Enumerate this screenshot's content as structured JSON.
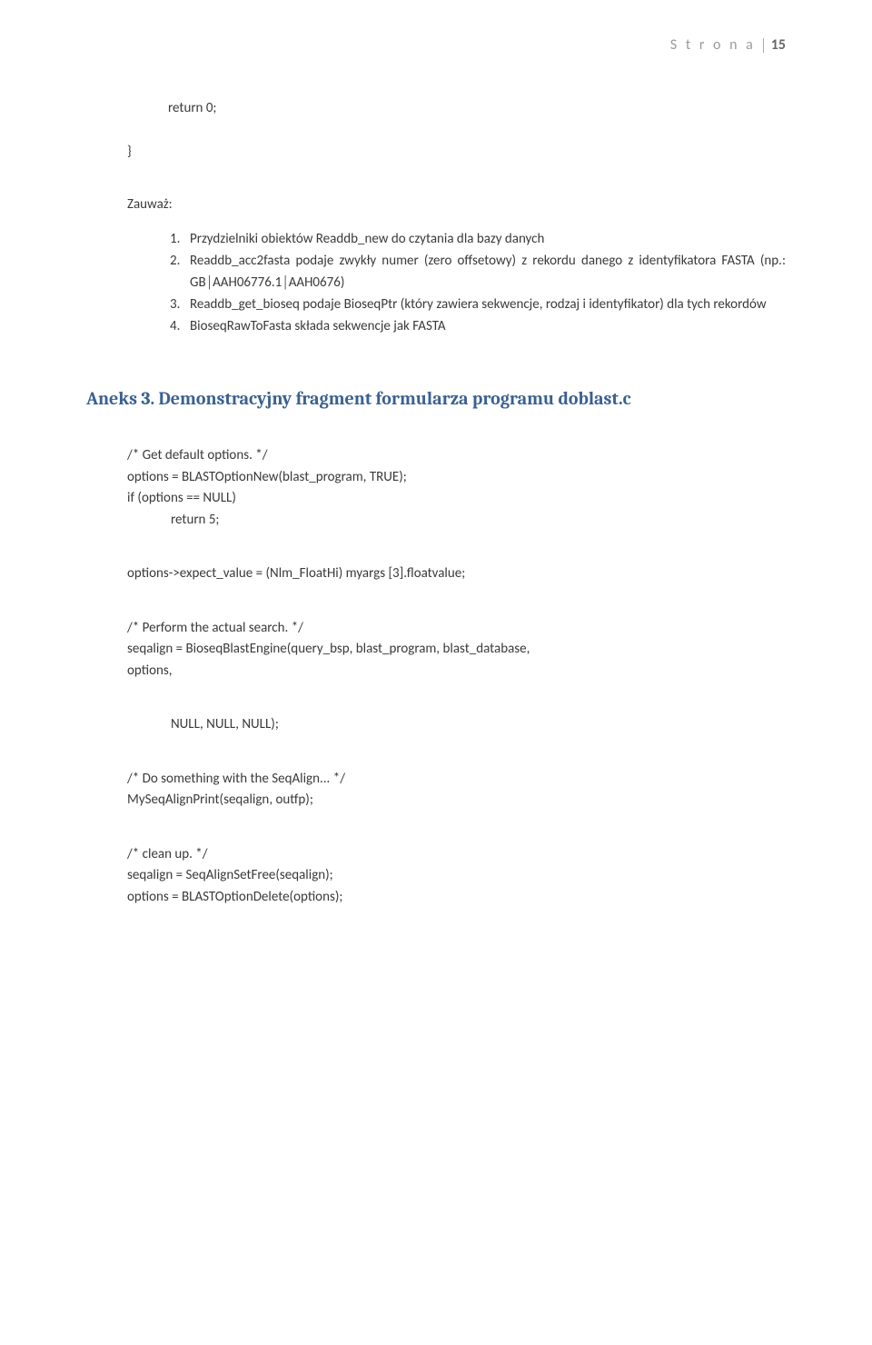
{
  "header": {
    "label": "S t r o n a",
    "page_number": "15"
  },
  "code_return": {
    "line": "return 0;",
    "brace": "}"
  },
  "notice": {
    "title": "Zauważ:",
    "items": [
      {
        "num": "1.",
        "text": "Przydzielniki obiektów Readdb_new do czytania dla bazy danych"
      },
      {
        "num": "2.",
        "text": "Readdb_acc2fasta podaje zwykły numer (zero offsetowy) z rekordu danego z identyfikatora FASTA (np.: GB│AAH06776.1│AAH0676)"
      },
      {
        "num": "3.",
        "text": "Readdb_get_bioseq podaje BioseqPtr (który zawiera sekwencje, rodzaj i identyfikator) dla tych rekordów"
      },
      {
        "num": "4.",
        "text": "BioseqRawToFasta składa sekwencje jak FASTA"
      }
    ]
  },
  "section": {
    "title": "Aneks 3. Demonstracyjny fragment formularza programu doblast.c"
  },
  "code": {
    "l1": "/* Get default options. */",
    "l2": "options = BLASTOptionNew(blast_program, TRUE);",
    "l3": "if (options == NULL)",
    "l4": "return 5;",
    "l5": "options->expect_value = (Nlm_FloatHi) myargs [3].floatvalue;",
    "l6": "/* Perform the actual search. */",
    "l7": "seqalign = BioseqBlastEngine(query_bsp, blast_program, blast_database,",
    "l8": "options,",
    "l9": "NULL, NULL, NULL);",
    "l10": "/* Do something with the SeqAlign... */",
    "l11": "MySeqAlignPrint(seqalign, outfp);",
    "l12": "/* clean up. */",
    "l13": "seqalign = SeqAlignSetFree(seqalign);",
    "l14": "options = BLASTOptionDelete(options);"
  },
  "colors": {
    "heading": "#3a608f",
    "text": "#3a3a3a",
    "header_gray": "#9a9a9a",
    "background": "#ffffff"
  }
}
